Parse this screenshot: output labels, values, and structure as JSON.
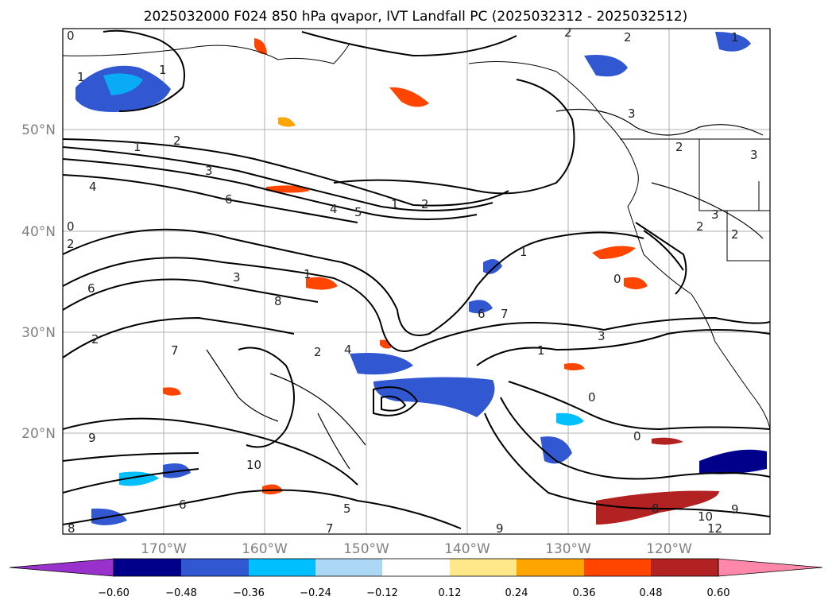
{
  "title": "2025032000 F024 850 hPa qvapor, IVT Landfall PC (2025032312 - 2025032512)",
  "axes": {
    "lat_labels": [
      "50°N",
      "40°N",
      "30°N",
      "20°N"
    ],
    "lon_labels": [
      "170°W",
      "160°W",
      "150°W",
      "140°W",
      "130°W",
      "120°W"
    ]
  },
  "colorbar": {
    "tick_labels": [
      "−0.60",
      "−0.48",
      "−0.36",
      "−0.24",
      "−0.12",
      "0.12",
      "0.24",
      "0.36",
      "0.48",
      "0.60"
    ],
    "colors": [
      "#9932cc",
      "#00008b",
      "#3157d1",
      "#00bfff",
      "#add8f5",
      "#ffffff",
      "#ffe88a",
      "#ffa500",
      "#ff4500",
      "#b22222",
      "#ff88aa"
    ],
    "extend": "both"
  },
  "contour_labels": [
    "0",
    "1",
    "1",
    "2",
    "2",
    "3",
    "4",
    "6",
    "5",
    "1",
    "2",
    "4",
    "2",
    "1",
    "6",
    "3",
    "8",
    "7",
    "4",
    "2",
    "1",
    "0",
    "6",
    "7",
    "2",
    "3",
    "1",
    "0",
    "0",
    "9",
    "10",
    "5",
    "6",
    "8",
    "7",
    "12",
    "9",
    "8",
    "10",
    "9",
    "2",
    "3",
    "2",
    "3",
    "1",
    "0",
    "1",
    "2",
    "2",
    "3"
  ],
  "colors": {
    "coastline": "#000000",
    "grid": "#b0b0b0",
    "contour": "#000000",
    "axis_label": "#808080"
  }
}
